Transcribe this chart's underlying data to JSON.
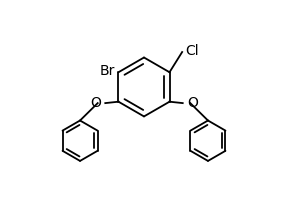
{
  "background_color": "#ffffff",
  "line_color": "#000000",
  "line_width": 1.3,
  "font_size": 9,
  "label_Br": "Br",
  "label_Cl": "Cl",
  "label_O1": "O",
  "label_O2": "O"
}
